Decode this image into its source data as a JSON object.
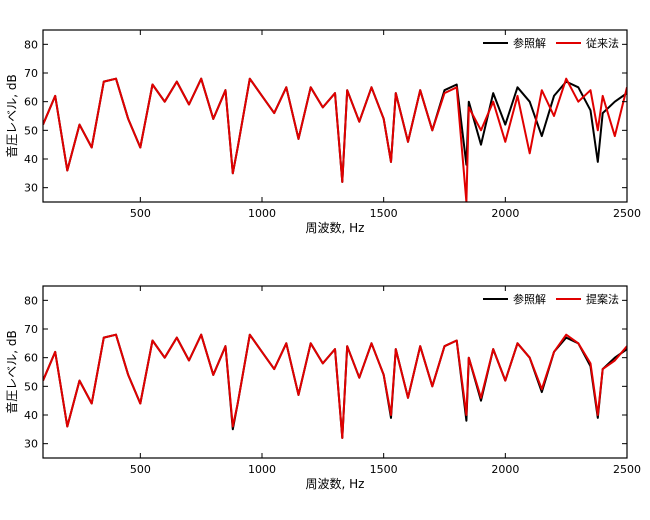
{
  "colors": {
    "reference": "#000000",
    "conventional": "#e00000",
    "proposed": "#e00000",
    "axes": "#000000",
    "background": "#ffffff"
  },
  "chart_data": [
    {
      "type": "line",
      "xlabel": "周波数, Hz",
      "ylabel": "音圧レベル, dB",
      "xlim": [
        100,
        2500
      ],
      "ylim": [
        25,
        85
      ],
      "xticks": [
        500,
        1000,
        1500,
        2000,
        2500
      ],
      "yticks": [
        30,
        40,
        50,
        60,
        70,
        80
      ],
      "grid": false,
      "legend_position": "top-right",
      "x": [
        100,
        150,
        200,
        250,
        300,
        350,
        400,
        450,
        500,
        550,
        600,
        650,
        700,
        750,
        800,
        850,
        880,
        900,
        950,
        1000,
        1050,
        1100,
        1150,
        1200,
        1250,
        1300,
        1330,
        1350,
        1400,
        1450,
        1500,
        1530,
        1550,
        1600,
        1650,
        1700,
        1750,
        1800,
        1840,
        1850,
        1900,
        1950,
        2000,
        2050,
        2100,
        2150,
        2200,
        2250,
        2300,
        2350,
        2380,
        2400,
        2450,
        2500
      ],
      "series": [
        {
          "name": "参照解",
          "color": "#000000",
          "values": [
            52,
            62,
            36,
            52,
            44,
            67,
            68,
            54,
            44,
            66,
            60,
            67,
            59,
            68,
            54,
            64,
            35,
            44,
            68,
            62,
            56,
            65,
            47,
            65,
            58,
            63,
            32,
            64,
            53,
            65,
            54,
            39,
            63,
            46,
            64,
            50,
            64,
            66,
            38,
            60,
            45,
            63,
            52,
            65,
            60,
            48,
            62,
            67,
            65,
            57,
            39,
            56,
            60,
            63
          ]
        },
        {
          "name": "従来法",
          "color": "#e00000",
          "values": [
            52,
            62,
            36,
            52,
            44,
            67,
            68,
            54,
            44,
            66,
            60,
            67,
            59,
            68,
            54,
            64,
            35,
            44,
            68,
            62,
            56,
            65,
            47,
            65,
            58,
            63,
            32,
            64,
            53,
            65,
            54,
            39,
            63,
            46,
            64,
            50,
            63,
            65,
            25,
            58,
            50,
            60,
            46,
            62,
            42,
            64,
            55,
            68,
            60,
            64,
            50,
            62,
            48,
            65
          ]
        }
      ]
    },
    {
      "type": "line",
      "xlabel": "周波数, Hz",
      "ylabel": "音圧レベル, dB",
      "xlim": [
        100,
        2500
      ],
      "ylim": [
        25,
        85
      ],
      "xticks": [
        500,
        1000,
        1500,
        2000,
        2500
      ],
      "yticks": [
        30,
        40,
        50,
        60,
        70,
        80
      ],
      "grid": false,
      "legend_position": "top-right",
      "x": [
        100,
        150,
        200,
        250,
        300,
        350,
        400,
        450,
        500,
        550,
        600,
        650,
        700,
        750,
        800,
        850,
        880,
        900,
        950,
        1000,
        1050,
        1100,
        1150,
        1200,
        1250,
        1300,
        1330,
        1350,
        1400,
        1450,
        1500,
        1530,
        1550,
        1600,
        1650,
        1700,
        1750,
        1800,
        1840,
        1850,
        1900,
        1950,
        2000,
        2050,
        2100,
        2150,
        2200,
        2250,
        2300,
        2350,
        2380,
        2400,
        2450,
        2500
      ],
      "series": [
        {
          "name": "参照解",
          "color": "#000000",
          "values": [
            52,
            62,
            36,
            52,
            44,
            67,
            68,
            54,
            44,
            66,
            60,
            67,
            59,
            68,
            54,
            64,
            35,
            44,
            68,
            62,
            56,
            65,
            47,
            65,
            58,
            63,
            32,
            64,
            53,
            65,
            54,
            39,
            63,
            46,
            64,
            50,
            64,
            66,
            38,
            60,
            45,
            63,
            52,
            65,
            60,
            48,
            62,
            67,
            65,
            57,
            39,
            56,
            60,
            63
          ]
        },
        {
          "name": "提案法",
          "color": "#e00000",
          "values": [
            52,
            62,
            36,
            52,
            44,
            67,
            68,
            54,
            44,
            66,
            60,
            67,
            59,
            68,
            54,
            64,
            36,
            44,
            68,
            62,
            56,
            65,
            47,
            65,
            58,
            63,
            32,
            64,
            53,
            65,
            54,
            40,
            63,
            46,
            64,
            50,
            64,
            66,
            40,
            60,
            46,
            63,
            52,
            65,
            60,
            49,
            62,
            68,
            65,
            58,
            40,
            56,
            59,
            64
          ]
        }
      ]
    }
  ]
}
